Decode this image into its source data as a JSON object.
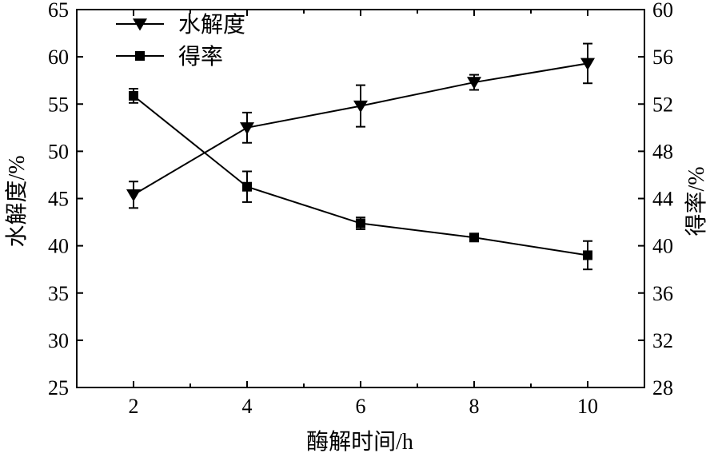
{
  "chart_data": {
    "type": "line",
    "x": [
      2,
      4,
      6,
      8,
      10
    ],
    "xlabel": "酶解时间/h",
    "xlim": [
      1,
      11
    ],
    "xticks": [
      "2",
      "4",
      "6",
      "8",
      "10"
    ],
    "ylabel_left": "水解度/%",
    "ylim_left": [
      25,
      65
    ],
    "yticks_left": [
      "25",
      "30",
      "35",
      "40",
      "45",
      "50",
      "55",
      "60",
      "65"
    ],
    "ylabel_right": "得率/%",
    "ylim_right": [
      28,
      60
    ],
    "yticks_right": [
      "28",
      "32",
      "36",
      "40",
      "44",
      "48",
      "52",
      "56",
      "60"
    ],
    "grid": false,
    "legend_position": "top-left",
    "series": [
      {
        "name": "水解度",
        "axis": "left",
        "marker": "triangle-down",
        "values": [
          45.4,
          52.5,
          54.8,
          57.3,
          59.3
        ],
        "errors": [
          1.4,
          1.6,
          2.2,
          0.8,
          2.1
        ]
      },
      {
        "name": "得率",
        "axis": "right",
        "marker": "square",
        "values": [
          52.7,
          45.0,
          41.9,
          40.7,
          39.2
        ],
        "errors": [
          0.6,
          1.3,
          0.5,
          0.0,
          1.2
        ]
      }
    ],
    "colors": {
      "line": "#000000",
      "background": "#ffffff"
    }
  }
}
